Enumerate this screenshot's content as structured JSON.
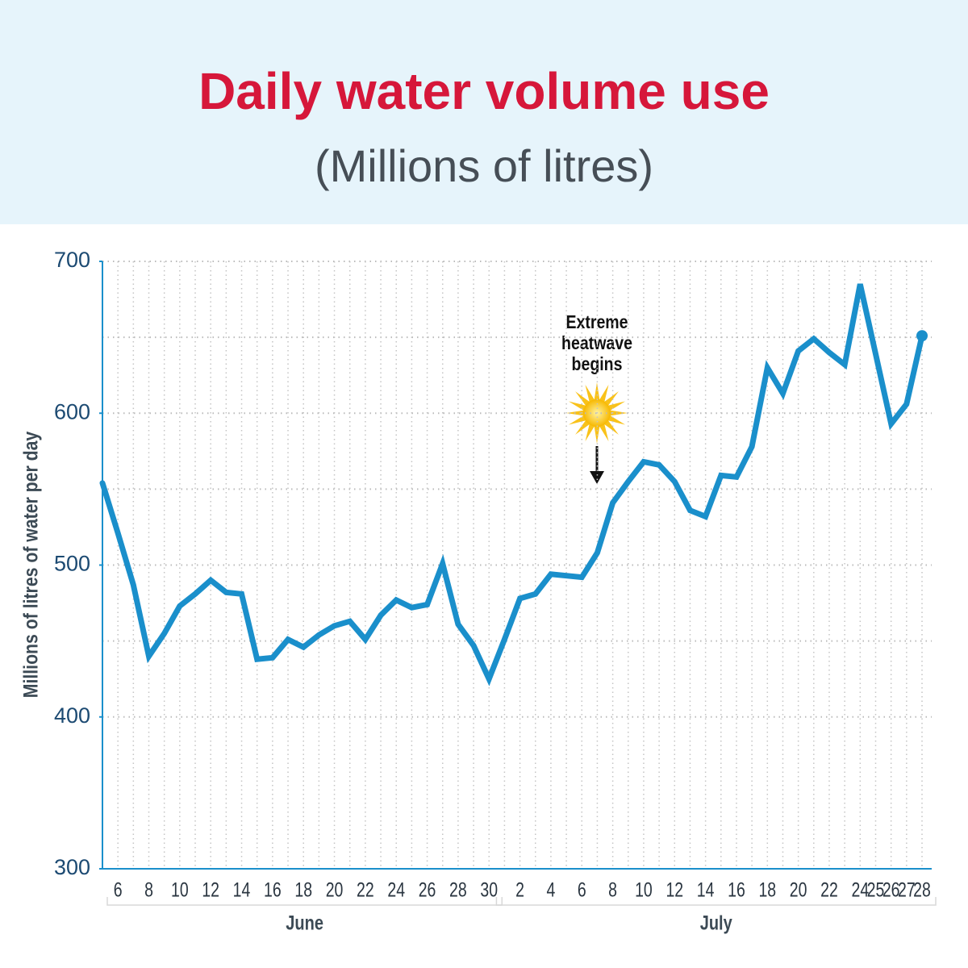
{
  "chart_data": {
    "type": "line",
    "title": "Daily water volume use",
    "subtitle": "(Millions of litres)",
    "ylabel": "Millions of litres of water per day",
    "annotation": [
      "Extreme",
      "heatwave",
      "begins"
    ],
    "categories": [
      null,
      "6",
      null,
      "8",
      null,
      "10",
      null,
      "12",
      null,
      "14",
      null,
      "16",
      null,
      "18",
      null,
      "20",
      null,
      "22",
      null,
      "24",
      null,
      "26",
      null,
      "28",
      null,
      "30",
      null,
      "2",
      null,
      "4",
      null,
      "6",
      null,
      "8",
      null,
      "10",
      null,
      "12",
      null,
      "14",
      null,
      "16",
      null,
      "18",
      null,
      "20",
      null,
      "22",
      null,
      "24",
      "25",
      "26",
      "27",
      "28"
    ],
    "groups": [
      {
        "label": "June",
        "span": 26
      },
      {
        "label": "July",
        "span": 28
      }
    ],
    "values": [
      554,
      521,
      487,
      440,
      455,
      473,
      481,
      490,
      482,
      481,
      438,
      439,
      451,
      446,
      454,
      460,
      463,
      451,
      467,
      477,
      472,
      474,
      501,
      461,
      447,
      425,
      451,
      478,
      481,
      494,
      493,
      492,
      508,
      541,
      555,
      568,
      566,
      555,
      536,
      532,
      559,
      558,
      578,
      630,
      613,
      641,
      649,
      640,
      632,
      685,
      639,
      593,
      606,
      651
    ],
    "color": "#1a8fcb",
    "ylim": [
      300,
      700
    ],
    "yticks": [
      300,
      400,
      500,
      600,
      700
    ],
    "ygrid": [
      400,
      450,
      500,
      550,
      600,
      650,
      700
    ],
    "grid": true
  }
}
